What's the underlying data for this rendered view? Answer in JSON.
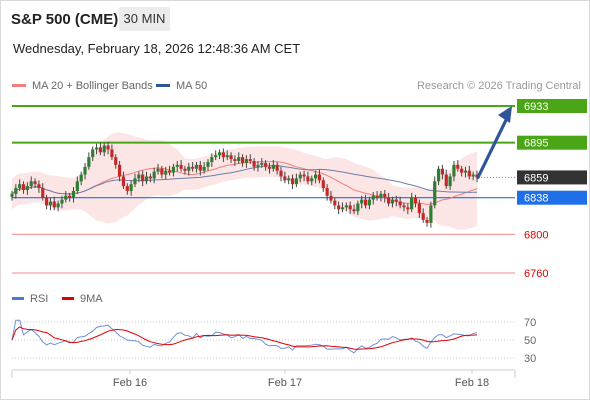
{
  "header": {
    "title": "S&P 500 (CME)",
    "interval": "30 MIN",
    "datetime": "Wednesday, February 18, 2026 12:48:36 AM CET"
  },
  "legend": {
    "items": [
      {
        "label": "MA 20 + Bollinger Bands",
        "color": "#f08080"
      },
      {
        "label": "MA 50",
        "color": "#2f5597"
      }
    ],
    "credit": "Research © 2026 Trading Central"
  },
  "rsi_legend": {
    "items": [
      {
        "label": "RSI",
        "color": "#4f77d0"
      },
      {
        "label": "9MA",
        "color": "#e00000"
      }
    ]
  },
  "chart_data": [
    {
      "type": "candlestick",
      "title": "S&P 500 (CME)",
      "interval": "30 MIN",
      "ylim": [
        6750,
        6945
      ],
      "x_ticks": [
        "Feb 16",
        "Feb 17",
        "Feb 18"
      ],
      "levels": [
        {
          "label": "6933",
          "value": 6933,
          "kind": "resistance",
          "color": "#4aa517"
        },
        {
          "label": "6895",
          "value": 6895,
          "kind": "resistance",
          "color": "#4aa517"
        },
        {
          "label": "6859",
          "value": 6859,
          "kind": "last",
          "color": "#333333"
        },
        {
          "label": "6838",
          "value": 6838,
          "kind": "pivot",
          "color": "#1e6fe8"
        },
        {
          "label": "6800",
          "value": 6800,
          "kind": "support",
          "color": "#e00000"
        },
        {
          "label": "6760",
          "value": 6760,
          "kind": "support",
          "color": "#e00000"
        }
      ],
      "target_arrow": {
        "from": 6859,
        "to": 6933
      },
      "closes": [
        6842,
        6848,
        6852,
        6846,
        6850,
        6855,
        6852,
        6848,
        6838,
        6830,
        6834,
        6828,
        6832,
        6836,
        6840,
        6838,
        6845,
        6855,
        6862,
        6870,
        6880,
        6888,
        6890,
        6885,
        6892,
        6888,
        6880,
        6872,
        6860,
        6850,
        6845,
        6852,
        6858,
        6862,
        6855,
        6860,
        6858,
        6865,
        6868,
        6862,
        6866,
        6864,
        6870,
        6872,
        6868,
        6866,
        6870,
        6868,
        6872,
        6866,
        6870,
        6875,
        6880,
        6882,
        6885,
        6880,
        6882,
        6878,
        6876,
        6880,
        6874,
        6878,
        6876,
        6870,
        6872,
        6874,
        6870,
        6868,
        6872,
        6866,
        6860,
        6856,
        6858,
        6852,
        6858,
        6862,
        6860,
        6855,
        6858,
        6862,
        6856,
        6848,
        6840,
        6835,
        6830,
        6826,
        6828,
        6830,
        6826,
        6824,
        6832,
        6836,
        6830,
        6836,
        6840,
        6838,
        6842,
        6838,
        6832,
        6836,
        6834,
        6830,
        6828,
        6826,
        6838,
        6832,
        6822,
        6815,
        6812,
        6830,
        6855,
        6868,
        6862,
        6850,
        6860,
        6872,
        6868,
        6864,
        6866,
        6860,
        6862,
        6859
      ]
    },
    {
      "type": "line",
      "title": "",
      "ylim": [
        20,
        80
      ],
      "y_ticks": [
        70,
        50,
        30
      ],
      "legend": [
        "RSI",
        "9MA"
      ]
    }
  ]
}
